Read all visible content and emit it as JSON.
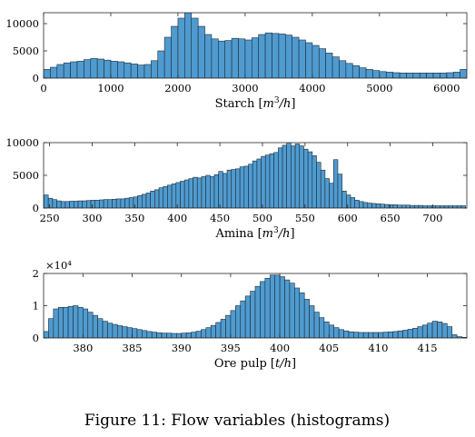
{
  "caption": "Figure 11: Flow variables (histograms)",
  "bar_color": "#4f9bd0",
  "bar_stroke": "#1c2a36",
  "chart_data": [
    {
      "type": "bar",
      "xlabel_text": "Starch",
      "xlabel_unit_html": "[m³/h]",
      "xlabel_parts": {
        "num": "m",
        "sup": "3",
        "den": "h"
      },
      "xlim": [
        0,
        6300
      ],
      "ylim": [
        0,
        12000
      ],
      "xticks": [
        0,
        1000,
        2000,
        3000,
        4000,
        5000,
        6000
      ],
      "xtick_labels": [
        "0",
        "1000",
        "2000",
        "3000",
        "4000",
        "5000",
        "6000"
      ],
      "yticks": [
        0,
        5000,
        10000
      ],
      "ytick_labels": [
        "0",
        "5000",
        "10000"
      ],
      "y_multiplier": "",
      "x": [
        50,
        150,
        250,
        350,
        450,
        550,
        650,
        750,
        850,
        950,
        1050,
        1150,
        1250,
        1350,
        1450,
        1550,
        1650,
        1750,
        1850,
        1950,
        2050,
        2150,
        2250,
        2350,
        2450,
        2550,
        2650,
        2750,
        2850,
        2950,
        3050,
        3150,
        3250,
        3350,
        3450,
        3550,
        3650,
        3750,
        3850,
        3950,
        4050,
        4150,
        4250,
        4350,
        4450,
        4550,
        4650,
        4750,
        4850,
        4950,
        5050,
        5150,
        5250,
        5350,
        5450,
        5550,
        5650,
        5750,
        5850,
        5950,
        6050,
        6150,
        6250
      ],
      "values": [
        1600,
        2000,
        2500,
        2800,
        3000,
        3100,
        3400,
        3600,
        3500,
        3300,
        3100,
        3000,
        2800,
        2600,
        2400,
        2500,
        3200,
        5000,
        7500,
        9500,
        11000,
        12000,
        11000,
        9500,
        8000,
        7200,
        6800,
        6900,
        7300,
        7200,
        7000,
        7400,
        8000,
        8300,
        8200,
        8100,
        7900,
        7500,
        7000,
        6500,
        6000,
        5400,
        4600,
        3900,
        3200,
        2700,
        2300,
        1900,
        1600,
        1400,
        1200,
        1100,
        1000,
        950,
        950,
        950,
        950,
        950,
        950,
        950,
        1000,
        1100,
        1600
      ]
    },
    {
      "type": "bar",
      "xlabel_text": "Amina",
      "xlabel_parts": {
        "num": "m",
        "sup": "3",
        "den": "h"
      },
      "xlim": [
        243,
        740
      ],
      "ylim": [
        0,
        10000
      ],
      "xticks": [
        250,
        300,
        350,
        400,
        450,
        500,
        550,
        600,
        650,
        700
      ],
      "xtick_labels": [
        "250",
        "300",
        "350",
        "400",
        "450",
        "500",
        "550",
        "600",
        "650",
        "700"
      ],
      "yticks": [
        0,
        5000,
        10000
      ],
      "ytick_labels": [
        "0",
        "5000",
        "10000"
      ],
      "y_multiplier": "",
      "x": [
        246,
        251,
        256,
        261,
        266,
        271,
        276,
        281,
        286,
        291,
        296,
        301,
        306,
        311,
        316,
        321,
        326,
        331,
        336,
        341,
        346,
        351,
        356,
        361,
        366,
        371,
        376,
        381,
        386,
        391,
        396,
        401,
        406,
        411,
        416,
        421,
        426,
        431,
        436,
        441,
        446,
        451,
        456,
        461,
        466,
        471,
        476,
        481,
        486,
        491,
        496,
        501,
        506,
        511,
        516,
        521,
        526,
        531,
        536,
        541,
        546,
        551,
        556,
        561,
        566,
        571,
        576,
        581,
        586,
        591,
        596,
        601,
        606,
        611,
        616,
        621,
        626,
        631,
        636,
        641,
        646,
        651,
        656,
        661,
        666,
        671,
        676,
        681,
        686,
        691,
        696,
        701,
        706,
        711,
        716,
        721,
        726,
        731,
        736
      ],
      "values": [
        2000,
        1500,
        1300,
        1100,
        1000,
        1000,
        1050,
        1050,
        1100,
        1100,
        1150,
        1200,
        1200,
        1250,
        1300,
        1300,
        1350,
        1400,
        1400,
        1500,
        1600,
        1700,
        1900,
        2100,
        2300,
        2600,
        2800,
        3100,
        3300,
        3500,
        3700,
        3900,
        4100,
        4300,
        4500,
        4700,
        4600,
        4800,
        5000,
        4800,
        5100,
        5600,
        5300,
        5800,
        5900,
        6000,
        6300,
        6400,
        6700,
        7200,
        7500,
        7900,
        8100,
        8300,
        8500,
        9200,
        9600,
        10000,
        9500,
        9800,
        9500,
        9000,
        8600,
        8000,
        7000,
        5800,
        4500,
        3800,
        7400,
        5200,
        2600,
        2000,
        1600,
        1200,
        1000,
        850,
        750,
        700,
        650,
        600,
        550,
        500,
        500,
        450,
        450,
        450,
        400,
        400,
        400,
        350,
        350,
        350,
        350,
        350,
        350,
        350,
        350,
        350,
        350
      ]
    },
    {
      "type": "bar",
      "xlabel_text": "Ore pulp",
      "xlabel_parts": {
        "num": "t",
        "sup": "",
        "den": "h"
      },
      "xlim": [
        376,
        419
      ],
      "ylim": [
        0,
        20000
      ],
      "xticks": [
        380,
        385,
        390,
        395,
        400,
        405,
        410,
        415
      ],
      "xtick_labels": [
        "380",
        "385",
        "390",
        "395",
        "400",
        "405",
        "410",
        "415"
      ],
      "yticks": [
        0,
        10000,
        20000
      ],
      "ytick_labels": [
        "0",
        "1",
        "2"
      ],
      "y_multiplier": "×10⁴",
      "x": [
        376.25,
        376.75,
        377.25,
        377.75,
        378.25,
        378.75,
        379.25,
        379.75,
        380.25,
        380.75,
        381.25,
        381.75,
        382.25,
        382.75,
        383.25,
        383.75,
        384.25,
        384.75,
        385.25,
        385.75,
        386.25,
        386.75,
        387.25,
        387.75,
        388.25,
        388.75,
        389.25,
        389.75,
        390.25,
        390.75,
        391.25,
        391.75,
        392.25,
        392.75,
        393.25,
        393.75,
        394.25,
        394.75,
        395.25,
        395.75,
        396.25,
        396.75,
        397.25,
        397.75,
        398.25,
        398.75,
        399.25,
        399.75,
        400.25,
        400.75,
        401.25,
        401.75,
        402.25,
        402.75,
        403.25,
        403.75,
        404.25,
        404.75,
        405.25,
        405.75,
        406.25,
        406.75,
        407.25,
        407.75,
        408.25,
        408.75,
        409.25,
        409.75,
        410.25,
        410.75,
        411.25,
        411.75,
        412.25,
        412.75,
        413.25,
        413.75,
        414.25,
        414.75,
        415.25,
        415.75,
        416.25,
        416.75,
        417.25,
        417.75,
        418.25,
        418.75
      ],
      "values": [
        2000,
        6000,
        9000,
        9500,
        9500,
        9800,
        10000,
        9500,
        9000,
        8000,
        7000,
        6000,
        5200,
        4600,
        4200,
        3800,
        3500,
        3200,
        2900,
        2600,
        2300,
        2000,
        1800,
        1600,
        1500,
        1500,
        1400,
        1400,
        1500,
        1600,
        1800,
        2100,
        2600,
        3200,
        3900,
        4800,
        5800,
        7000,
        8500,
        10000,
        11500,
        13000,
        14500,
        16000,
        17500,
        18500,
        19500,
        19500,
        19000,
        18000,
        17000,
        15500,
        14000,
        12000,
        10000,
        8000,
        6300,
        5000,
        4000,
        3200,
        2600,
        2200,
        1900,
        1800,
        1700,
        1700,
        1700,
        1700,
        1700,
        1800,
        1900,
        2000,
        2200,
        2400,
        2700,
        3000,
        3500,
        4000,
        4600,
        5200,
        5000,
        4500,
        3500,
        1000,
        400,
        200
      ]
    }
  ]
}
